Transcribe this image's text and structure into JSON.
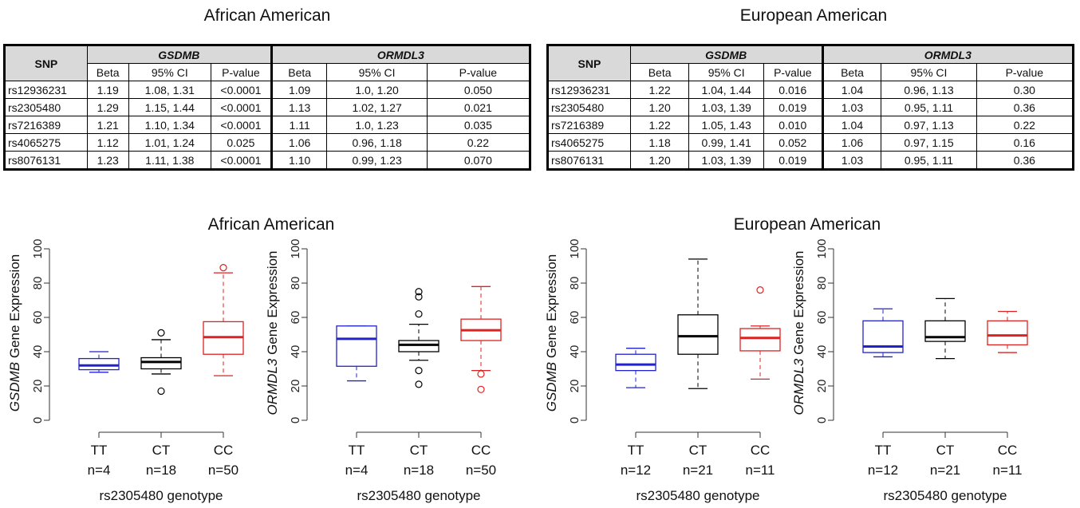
{
  "tables": [
    {
      "title": "African American",
      "snp_header": "SNP",
      "genes": [
        "GSDMB",
        "ORMDL3"
      ],
      "sub_headers": [
        "Beta",
        "95% CI",
        "P-value"
      ],
      "rows": [
        [
          "rs12936231",
          "1.19",
          "1.08, 1.31",
          "<0.0001",
          "1.09",
          "1.0, 1.20",
          "0.050"
        ],
        [
          "rs2305480",
          "1.29",
          "1.15, 1.44",
          "<0.0001",
          "1.13",
          "1.02, 1.27",
          "0.021"
        ],
        [
          "rs7216389",
          "1.21",
          "1.10, 1.34",
          "<0.0001",
          "1.11",
          "1.0, 1.23",
          "0.035"
        ],
        [
          "rs4065275",
          "1.12",
          "1.01, 1.24",
          "0.025",
          "1.06",
          "0.96, 1.18",
          "0.22"
        ],
        [
          "rs8076131",
          "1.23",
          "1.11, 1.38",
          "<0.0001",
          "1.10",
          "0.99, 1.23",
          "0.070"
        ]
      ]
    },
    {
      "title": "European American",
      "snp_header": "SNP",
      "genes": [
        "GSDMB",
        "ORMDL3"
      ],
      "sub_headers": [
        "Beta",
        "95% CI",
        "P-value"
      ],
      "rows": [
        [
          "rs12936231",
          "1.22",
          "1.04, 1.44",
          "0.016",
          "1.04",
          "0.96, 1.13",
          "0.30"
        ],
        [
          "rs2305480",
          "1.20",
          "1.03, 1.39",
          "0.019",
          "1.03",
          "0.95, 1.11",
          "0.36"
        ],
        [
          "rs7216389",
          "1.22",
          "1.05, 1.43",
          "0.010",
          "1.04",
          "0.97, 1.13",
          "0.22"
        ],
        [
          "rs4065275",
          "1.18",
          "0.99, 1.41",
          "0.052",
          "1.06",
          "0.97, 1.15",
          "0.16"
        ],
        [
          "rs8076131",
          "1.20",
          "1.03, 1.39",
          "0.019",
          "1.03",
          "0.95, 1.11",
          "0.36"
        ]
      ]
    }
  ],
  "plot_titles": [
    "African American",
    "European American"
  ],
  "chart_data": [
    {
      "type": "boxplot",
      "group": "African American",
      "gene": "GSDMB",
      "ylabel_gene": "GSDMB",
      "ylabel_rest": " Gene Expression",
      "xlabel": "rs2305480 genotype",
      "ylim": [
        0,
        100
      ],
      "yticks": [
        0,
        20,
        40,
        60,
        80,
        100
      ],
      "boxes": [
        {
          "category": "TT",
          "n": "n=4",
          "color": "#2222cc",
          "min": 28,
          "q1": 29.5,
          "median": 32,
          "q3": 36,
          "max": 40,
          "outliers": []
        },
        {
          "category": "CT",
          "n": "n=18",
          "color": "#000000",
          "min": 27,
          "q1": 30,
          "median": 34,
          "q3": 36.5,
          "max": 47,
          "outliers": [
            51,
            17
          ]
        },
        {
          "category": "CC",
          "n": "n=50",
          "color": "#dd2222",
          "min": 26,
          "q1": 38.5,
          "median": 48.5,
          "q3": 57.5,
          "max": 86,
          "outliers": [
            89
          ]
        }
      ]
    },
    {
      "type": "boxplot",
      "group": "African American",
      "gene": "ORMDL3",
      "ylabel_gene": "ORMDL3",
      "ylabel_rest": " Gene Expression",
      "xlabel": "rs2305480 genotype",
      "ylim": [
        0,
        100
      ],
      "yticks": [
        0,
        20,
        40,
        60,
        80,
        100
      ],
      "boxes": [
        {
          "category": "TT",
          "n": "n=4",
          "color": "#2222cc",
          "min": 23,
          "q1": 31.5,
          "median": 47.5,
          "q3": 55,
          "max": 55,
          "outliers": []
        },
        {
          "category": "CT",
          "n": "n=18",
          "color": "#000000",
          "min": 35,
          "q1": 40,
          "median": 44,
          "q3": 46.5,
          "max": 56,
          "outliers": [
            75,
            72,
            62,
            29,
            21
          ]
        },
        {
          "category": "CC",
          "n": "n=50",
          "color": "#dd2222",
          "min": 29,
          "q1": 46.5,
          "median": 52.5,
          "q3": 59,
          "max": 78,
          "outliers": [
            27,
            18
          ]
        }
      ]
    },
    {
      "type": "boxplot",
      "group": "European American",
      "gene": "GSDMB",
      "ylabel_gene": "GSDMB",
      "ylabel_rest": " Gene Expression",
      "xlabel": "rs2305480 genotype",
      "ylim": [
        0,
        100
      ],
      "yticks": [
        0,
        20,
        40,
        60,
        80,
        100
      ],
      "boxes": [
        {
          "category": "TT",
          "n": "n=12",
          "color": "#2222cc",
          "min": 19,
          "q1": 29,
          "median": 32.5,
          "q3": 38.5,
          "max": 42,
          "outliers": []
        },
        {
          "category": "CT",
          "n": "n=21",
          "color": "#000000",
          "min": 18.5,
          "q1": 38.5,
          "median": 49,
          "q3": 61.5,
          "max": 94,
          "outliers": []
        },
        {
          "category": "CC",
          "n": "n=11",
          "color": "#dd2222",
          "min": 24,
          "q1": 40.5,
          "median": 48,
          "q3": 53.5,
          "max": 55,
          "outliers": [
            76
          ]
        }
      ]
    },
    {
      "type": "boxplot",
      "group": "European American",
      "gene": "ORMDL3",
      "ylabel_gene": "ORMDL3",
      "ylabel_rest": " Gene Expression",
      "xlabel": "rs2305480 genotype",
      "ylim": [
        0,
        100
      ],
      "yticks": [
        0,
        20,
        40,
        60,
        80,
        100
      ],
      "boxes": [
        {
          "category": "TT",
          "n": "n=12",
          "color": "#2222cc",
          "min": 37,
          "q1": 39.5,
          "median": 43,
          "q3": 58,
          "max": 65,
          "outliers": []
        },
        {
          "category": "CT",
          "n": "n=21",
          "color": "#000000",
          "min": 36,
          "q1": 46,
          "median": 48.5,
          "q3": 58,
          "max": 71,
          "outliers": []
        },
        {
          "category": "CC",
          "n": "n=11",
          "color": "#dd2222",
          "min": 39.5,
          "q1": 44,
          "median": 49.5,
          "q3": 58,
          "max": 63.5,
          "outliers": []
        }
      ]
    }
  ]
}
